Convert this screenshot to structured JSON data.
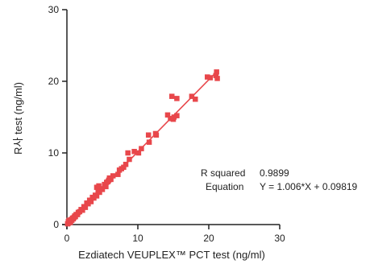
{
  "chart_data": {
    "type": "scatter",
    "xlabel": "Ezdiatech VEUPLEX™ PCT test (ng/ml)",
    "ylabel": "R사 test (ng/ml)",
    "xlim": [
      0,
      30
    ],
    "ylim": [
      0,
      30
    ],
    "x_ticks": [
      "0",
      "10",
      "20",
      "30"
    ],
    "y_ticks": [
      "0",
      "10",
      "20",
      "30"
    ],
    "grid": false,
    "marker_color": "#e8474b",
    "line_color": "#e8474b",
    "annotations": {
      "r_squared_label": "R squared",
      "r_squared_value": "0.9899",
      "equation_label": "Equation",
      "equation_value": "Y = 1.006*X + 0.09819"
    },
    "regression": {
      "slope": 1.006,
      "intercept": 0.09819,
      "x_range": [
        0,
        21.2
      ]
    },
    "points": [
      [
        0.1,
        0.1
      ],
      [
        0.2,
        0.2
      ],
      [
        0.3,
        0.3
      ],
      [
        0.2,
        0.4
      ],
      [
        0.4,
        0.3
      ],
      [
        0.5,
        0.5
      ],
      [
        0.6,
        0.7
      ],
      [
        0.7,
        0.6
      ],
      [
        0.8,
        0.9
      ],
      [
        0.9,
        0.8
      ],
      [
        1.0,
        1.0
      ],
      [
        1.1,
        1.2
      ],
      [
        0.5,
        0.3
      ],
      [
        0.3,
        0.6
      ],
      [
        1.2,
        1.1
      ],
      [
        1.3,
        1.4
      ],
      [
        1.5,
        1.4
      ],
      [
        1.6,
        1.7
      ],
      [
        1.8,
        1.8
      ],
      [
        2.0,
        2.1
      ],
      [
        2.2,
        2.0
      ],
      [
        2.4,
        2.5
      ],
      [
        2.6,
        2.4
      ],
      [
        2.8,
        3.0
      ],
      [
        3.0,
        2.9
      ],
      [
        3.2,
        3.4
      ],
      [
        3.4,
        3.2
      ],
      [
        3.6,
        3.8
      ],
      [
        3.8,
        3.7
      ],
      [
        4.0,
        4.1
      ],
      [
        4.2,
        4.0
      ],
      [
        4.4,
        4.6
      ],
      [
        4.6,
        4.5
      ],
      [
        4.8,
        5.0
      ],
      [
        5.0,
        4.9
      ],
      [
        4.2,
        5.2
      ],
      [
        4.5,
        5.4
      ],
      [
        5.3,
        5.6
      ],
      [
        5.5,
        5.3
      ],
      [
        5.6,
        5.9
      ],
      [
        5.9,
        6.2
      ],
      [
        5.8,
        6.0
      ],
      [
        6.2,
        6.3
      ],
      [
        6.0,
        6.5
      ],
      [
        6.5,
        6.8
      ],
      [
        7.2,
        7.0
      ],
      [
        7.4,
        7.6
      ],
      [
        7.7,
        7.8
      ],
      [
        8.0,
        8.0
      ],
      [
        8.3,
        8.4
      ],
      [
        8.8,
        9.1
      ],
      [
        8.6,
        10.0
      ],
      [
        9.5,
        10.2
      ],
      [
        10.1,
        10.0
      ],
      [
        10.5,
        10.6
      ],
      [
        11.6,
        11.5
      ],
      [
        11.5,
        12.5
      ],
      [
        12.6,
        12.5
      ],
      [
        12.5,
        12.7
      ],
      [
        14.2,
        15.3
      ],
      [
        14.6,
        14.8
      ],
      [
        15.1,
        15.0
      ],
      [
        15.5,
        15.2
      ],
      [
        15.0,
        14.7
      ],
      [
        14.8,
        17.9
      ],
      [
        15.5,
        17.6
      ],
      [
        17.6,
        17.9
      ],
      [
        18.1,
        17.5
      ],
      [
        19.8,
        20.6
      ],
      [
        20.2,
        20.5
      ],
      [
        21.0,
        20.8
      ],
      [
        21.1,
        21.3
      ],
      [
        21.2,
        20.4
      ]
    ]
  }
}
